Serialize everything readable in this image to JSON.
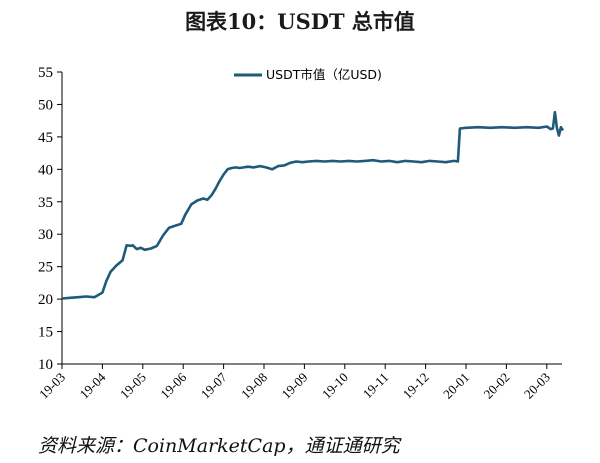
{
  "title": "图表10：USDT 总市值",
  "source": "资料来源：CoinMarketCap，通证通研究",
  "chart_data": {
    "type": "line",
    "title": "图表10：USDT 总市值",
    "xlabel": "",
    "ylabel": "",
    "ylim": [
      10,
      55
    ],
    "yticks": [
      10,
      15,
      20,
      25,
      30,
      35,
      40,
      45,
      50,
      55
    ],
    "xticks": [
      "19-03",
      "19-04",
      "19-05",
      "19-06",
      "19-07",
      "19-08",
      "19-09",
      "19-10",
      "19-11",
      "19-12",
      "20-01",
      "20-02",
      "20-03"
    ],
    "xlim": [
      0,
      12.5
    ],
    "grid": false,
    "legend_position": "top-center",
    "color": "#1f5a7a",
    "series": [
      {
        "name": "USDT市值（亿USD)",
        "x": [
          0,
          0.2,
          0.4,
          0.6,
          0.8,
          1.0,
          1.1,
          1.2,
          1.35,
          1.5,
          1.6,
          1.7,
          1.75,
          1.85,
          1.95,
          2.05,
          2.2,
          2.35,
          2.5,
          2.65,
          2.8,
          2.95,
          3.05,
          3.2,
          3.35,
          3.5,
          3.6,
          3.7,
          3.8,
          3.9,
          4.0,
          4.1,
          4.2,
          4.3,
          4.4,
          4.5,
          4.6,
          4.75,
          4.9,
          5.05,
          5.2,
          5.35,
          5.5,
          5.65,
          5.8,
          5.95,
          6.1,
          6.3,
          6.5,
          6.7,
          6.9,
          7.1,
          7.3,
          7.5,
          7.7,
          7.9,
          8.1,
          8.3,
          8.5,
          8.7,
          8.9,
          9.1,
          9.3,
          9.5,
          9.7,
          9.8,
          9.85,
          10.0,
          10.3,
          10.6,
          10.9,
          11.2,
          11.5,
          11.8,
          12.0,
          12.1,
          12.15,
          12.2,
          12.25,
          12.3,
          12.35,
          12.4
        ],
        "values": [
          20.1,
          20.2,
          20.3,
          20.4,
          20.3,
          21.0,
          22.8,
          24.2,
          25.2,
          26.0,
          28.3,
          28.2,
          28.3,
          27.7,
          27.9,
          27.6,
          27.8,
          28.2,
          29.8,
          31.0,
          31.3,
          31.6,
          33.0,
          34.6,
          35.2,
          35.5,
          35.3,
          36.0,
          37.0,
          38.2,
          39.2,
          40.0,
          40.2,
          40.3,
          40.2,
          40.3,
          40.4,
          40.3,
          40.5,
          40.3,
          40.0,
          40.5,
          40.6,
          41.0,
          41.2,
          41.1,
          41.2,
          41.3,
          41.2,
          41.3,
          41.2,
          41.3,
          41.2,
          41.3,
          41.4,
          41.2,
          41.3,
          41.1,
          41.3,
          41.2,
          41.1,
          41.3,
          41.2,
          41.1,
          41.3,
          41.2,
          46.3,
          46.4,
          46.5,
          46.4,
          46.5,
          46.4,
          46.5,
          46.4,
          46.6,
          46.2,
          46.3,
          48.8,
          46.4,
          45.2,
          46.5,
          46.0
        ]
      }
    ]
  }
}
